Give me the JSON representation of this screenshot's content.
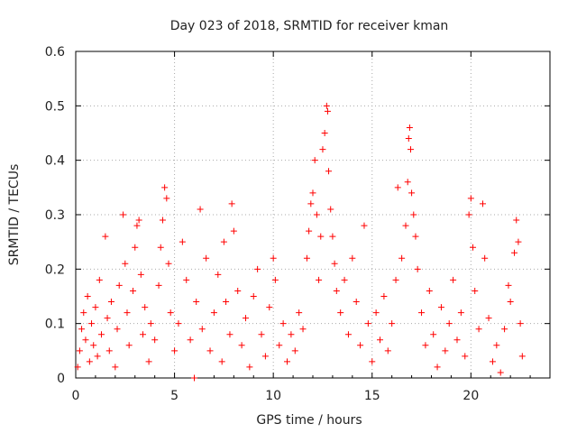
{
  "chart_data": {
    "type": "scatter",
    "title": "Day 023 of 2018, SRMTID for receiver kman",
    "xlabel": "GPS time / hours",
    "ylabel": "SRMTID / TECUs",
    "xlim": [
      0,
      24
    ],
    "ylim": [
      0,
      0.6
    ],
    "xticks": [
      0,
      5,
      10,
      15,
      20
    ],
    "yticks": [
      0,
      0.1,
      0.2,
      0.3,
      0.4,
      0.5,
      0.6
    ],
    "xtick_labels": [
      "0",
      "5",
      "10",
      "15",
      "20"
    ],
    "ytick_labels": [
      "0",
      "0.1",
      "0.2",
      "0.3",
      "0.4",
      "0.5",
      "0.6"
    ],
    "grid": true,
    "marker": "+",
    "color": "#ff0000",
    "series": [
      {
        "name": "SRMTID",
        "points": [
          [
            0.1,
            0.02
          ],
          [
            0.2,
            0.05
          ],
          [
            0.3,
            0.09
          ],
          [
            0.4,
            0.12
          ],
          [
            0.5,
            0.07
          ],
          [
            0.6,
            0.15
          ],
          [
            0.7,
            0.03
          ],
          [
            0.8,
            0.1
          ],
          [
            0.9,
            0.06
          ],
          [
            1.0,
            0.13
          ],
          [
            1.1,
            0.04
          ],
          [
            1.2,
            0.18
          ],
          [
            1.3,
            0.08
          ],
          [
            1.5,
            0.26
          ],
          [
            1.6,
            0.11
          ],
          [
            1.7,
            0.05
          ],
          [
            1.8,
            0.14
          ],
          [
            2.0,
            0.02
          ],
          [
            2.1,
            0.09
          ],
          [
            2.2,
            0.17
          ],
          [
            2.4,
            0.3
          ],
          [
            2.5,
            0.21
          ],
          [
            2.6,
            0.12
          ],
          [
            2.7,
            0.06
          ],
          [
            2.9,
            0.16
          ],
          [
            3.0,
            0.24
          ],
          [
            3.1,
            0.28
          ],
          [
            3.2,
            0.29
          ],
          [
            3.3,
            0.19
          ],
          [
            3.4,
            0.08
          ],
          [
            3.5,
            0.13
          ],
          [
            3.7,
            0.03
          ],
          [
            3.8,
            0.1
          ],
          [
            4.0,
            0.07
          ],
          [
            4.2,
            0.17
          ],
          [
            4.3,
            0.24
          ],
          [
            4.4,
            0.29
          ],
          [
            4.5,
            0.35
          ],
          [
            4.6,
            0.33
          ],
          [
            4.7,
            0.21
          ],
          [
            4.8,
            0.12
          ],
          [
            5.0,
            0.05
          ],
          [
            5.2,
            0.1
          ],
          [
            5.4,
            0.25
          ],
          [
            5.6,
            0.18
          ],
          [
            5.8,
            0.07
          ],
          [
            6.0,
            0.0
          ],
          [
            6.1,
            0.14
          ],
          [
            6.3,
            0.31
          ],
          [
            6.4,
            0.09
          ],
          [
            6.6,
            0.22
          ],
          [
            6.8,
            0.05
          ],
          [
            7.0,
            0.12
          ],
          [
            7.2,
            0.19
          ],
          [
            7.4,
            0.03
          ],
          [
            7.5,
            0.25
          ],
          [
            7.6,
            0.14
          ],
          [
            7.8,
            0.08
          ],
          [
            7.9,
            0.32
          ],
          [
            8.0,
            0.27
          ],
          [
            8.2,
            0.16
          ],
          [
            8.4,
            0.06
          ],
          [
            8.6,
            0.11
          ],
          [
            8.8,
            0.02
          ],
          [
            9.0,
            0.15
          ],
          [
            9.2,
            0.2
          ],
          [
            9.4,
            0.08
          ],
          [
            9.6,
            0.04
          ],
          [
            9.8,
            0.13
          ],
          [
            10.0,
            0.22
          ],
          [
            10.1,
            0.18
          ],
          [
            10.3,
            0.06
          ],
          [
            10.5,
            0.1
          ],
          [
            10.7,
            0.03
          ],
          [
            10.9,
            0.08
          ],
          [
            11.1,
            0.05
          ],
          [
            11.3,
            0.12
          ],
          [
            11.5,
            0.09
          ],
          [
            11.7,
            0.22
          ],
          [
            11.8,
            0.27
          ],
          [
            11.9,
            0.32
          ],
          [
            12.0,
            0.34
          ],
          [
            12.1,
            0.4
          ],
          [
            12.2,
            0.3
          ],
          [
            12.3,
            0.18
          ],
          [
            12.4,
            0.26
          ],
          [
            12.5,
            0.42
          ],
          [
            12.6,
            0.45
          ],
          [
            12.7,
            0.5
          ],
          [
            12.75,
            0.49
          ],
          [
            12.8,
            0.38
          ],
          [
            12.9,
            0.31
          ],
          [
            13.0,
            0.26
          ],
          [
            13.1,
            0.21
          ],
          [
            13.2,
            0.16
          ],
          [
            13.4,
            0.12
          ],
          [
            13.6,
            0.18
          ],
          [
            13.8,
            0.08
          ],
          [
            14.0,
            0.22
          ],
          [
            14.2,
            0.14
          ],
          [
            14.4,
            0.06
          ],
          [
            14.6,
            0.28
          ],
          [
            14.8,
            0.1
          ],
          [
            15.0,
            0.03
          ],
          [
            15.2,
            0.12
          ],
          [
            15.4,
            0.07
          ],
          [
            15.6,
            0.15
          ],
          [
            15.8,
            0.05
          ],
          [
            16.0,
            0.1
          ],
          [
            16.2,
            0.18
          ],
          [
            16.3,
            0.35
          ],
          [
            16.5,
            0.22
          ],
          [
            16.7,
            0.28
          ],
          [
            16.8,
            0.36
          ],
          [
            16.85,
            0.44
          ],
          [
            16.9,
            0.46
          ],
          [
            16.95,
            0.42
          ],
          [
            17.0,
            0.34
          ],
          [
            17.1,
            0.3
          ],
          [
            17.2,
            0.26
          ],
          [
            17.3,
            0.2
          ],
          [
            17.5,
            0.12
          ],
          [
            17.7,
            0.06
          ],
          [
            17.9,
            0.16
          ],
          [
            18.1,
            0.08
          ],
          [
            18.3,
            0.02
          ],
          [
            18.5,
            0.13
          ],
          [
            18.7,
            0.05
          ],
          [
            18.9,
            0.1
          ],
          [
            19.1,
            0.18
          ],
          [
            19.3,
            0.07
          ],
          [
            19.5,
            0.12
          ],
          [
            19.7,
            0.04
          ],
          [
            19.9,
            0.3
          ],
          [
            20.0,
            0.33
          ],
          [
            20.1,
            0.24
          ],
          [
            20.2,
            0.16
          ],
          [
            20.4,
            0.09
          ],
          [
            20.6,
            0.32
          ],
          [
            20.7,
            0.22
          ],
          [
            20.9,
            0.11
          ],
          [
            21.1,
            0.03
          ],
          [
            21.3,
            0.06
          ],
          [
            21.5,
            0.01
          ],
          [
            21.7,
            0.09
          ],
          [
            21.9,
            0.17
          ],
          [
            22.0,
            0.14
          ],
          [
            22.2,
            0.23
          ],
          [
            22.3,
            0.29
          ],
          [
            22.4,
            0.25
          ],
          [
            22.5,
            0.1
          ],
          [
            22.6,
            0.04
          ]
        ]
      }
    ]
  }
}
